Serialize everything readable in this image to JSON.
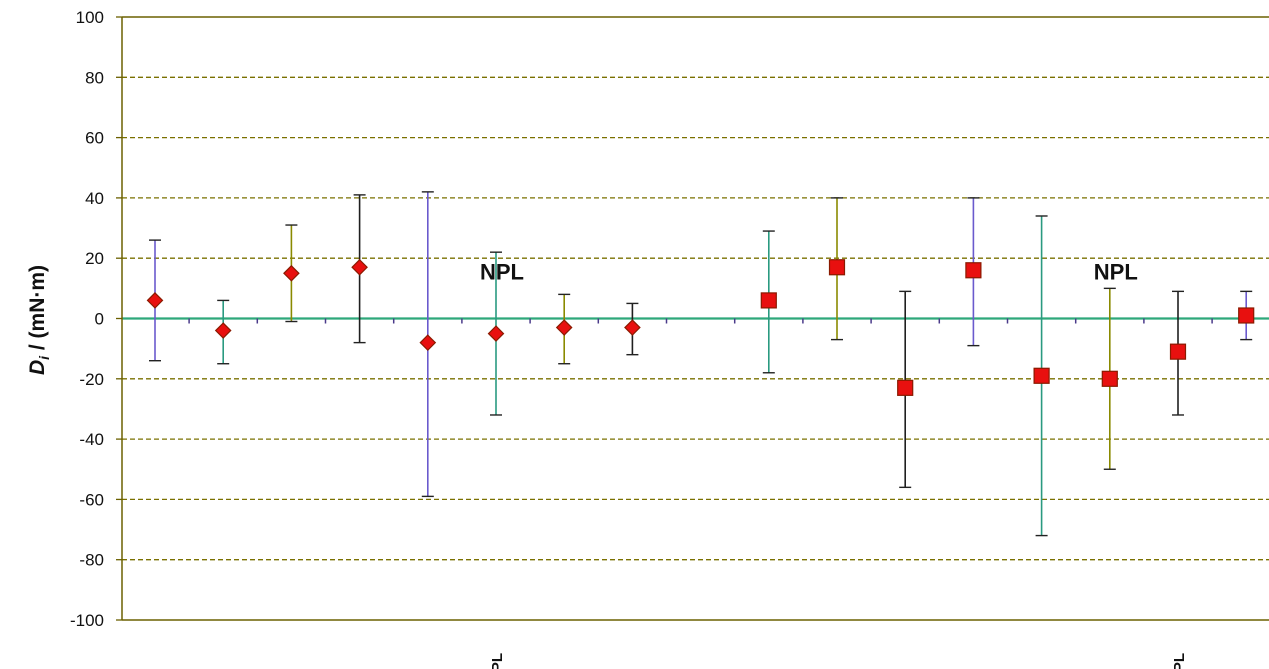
{
  "chart_data": {
    "type": "scatter",
    "ylabel": "D_i / (mN·m)",
    "ylabel_main": "D",
    "ylabel_sub": "i",
    "ylabel_rest": " / (mN·m)",
    "ylim": [
      -100,
      100
    ],
    "yticks": [
      "100",
      "80",
      "60",
      "40",
      "20",
      "0",
      "-20",
      "-40",
      "-60",
      "-80",
      "-100"
    ],
    "grid": "horizontal dashed",
    "x_positions": 17,
    "x_category_labels": [
      {
        "index": 6,
        "text": "NPL"
      },
      {
        "index": 16,
        "text": "NPL"
      }
    ],
    "annotations": [
      {
        "index": 6,
        "text": "NPL"
      },
      {
        "index": 15,
        "text": "NPL"
      }
    ],
    "colors": {
      "marker": "#e8100f",
      "marker_edge": "#8a1a00",
      "zero_line": "#2ea87a",
      "grid": "#7a7000",
      "frame": "#6b6000"
    },
    "series": [
      {
        "marker": "diamond",
        "points": [
          {
            "x": 1,
            "y": 6,
            "upper": 26,
            "lower": -14
          },
          {
            "x": 2,
            "y": -4,
            "upper": 6,
            "lower": -15
          },
          {
            "x": 3,
            "y": 15,
            "upper": 31,
            "lower": -1
          },
          {
            "x": 4,
            "y": 17,
            "upper": 41,
            "lower": -8
          },
          {
            "x": 5,
            "y": -8,
            "upper": 42,
            "lower": -59
          },
          {
            "x": 6,
            "y": -5,
            "upper": 22,
            "lower": -32
          },
          {
            "x": 7,
            "y": -3,
            "upper": 8,
            "lower": -15
          },
          {
            "x": 8,
            "y": -3,
            "upper": 5,
            "lower": -12
          }
        ]
      },
      {
        "marker": "square",
        "points": [
          {
            "x": 10,
            "y": 6,
            "upper": 29,
            "lower": -18
          },
          {
            "x": 11,
            "y": 17,
            "upper": 40,
            "lower": -7
          },
          {
            "x": 12,
            "y": -23,
            "upper": 9,
            "lower": -56
          },
          {
            "x": 13,
            "y": 16,
            "upper": 40,
            "lower": -9
          },
          {
            "x": 14,
            "y": -19,
            "upper": 34,
            "lower": -72
          },
          {
            "x": 15,
            "y": -20,
            "upper": 10,
            "lower": -50
          },
          {
            "x": 16,
            "y": -11,
            "upper": 9,
            "lower": -32
          },
          {
            "x": 17,
            "y": 1,
            "upper": 9,
            "lower": -7
          }
        ]
      }
    ]
  }
}
